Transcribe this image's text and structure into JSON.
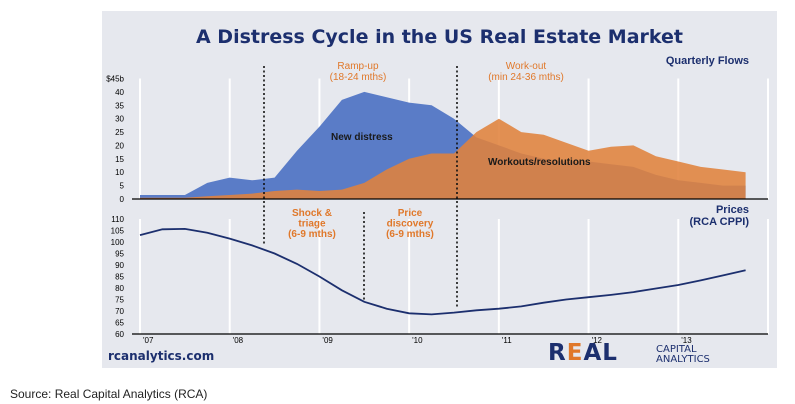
{
  "title": "A Distress Cycle in the US Real Estate Market",
  "website": "rcanalytics.com",
  "logo": {
    "main_pre": "R",
    "main_e": "E",
    "main_post": "AL",
    "line1": "CAPITAL",
    "line2": "ANALYTICS"
  },
  "source": "Source: Real Capital Analytics (RCA)",
  "colors": {
    "blue": "#5a7cc7",
    "orange": "#e0823c",
    "navy": "#1c2f6e",
    "phase": "#e0782a",
    "panel": "#e6e8ee"
  },
  "chart_data": [
    {
      "type": "area",
      "title": "Quarterly Flows",
      "y_unit_label": "$45b",
      "yticks": [
        40,
        35,
        30,
        25,
        20,
        15,
        10,
        5,
        0
      ],
      "ylim": [
        0,
        45
      ],
      "xlim": [
        2007,
        2014
      ],
      "x": [
        2007.0,
        2007.25,
        2007.5,
        2007.75,
        2008.0,
        2008.25,
        2008.5,
        2008.75,
        2009.0,
        2009.25,
        2009.5,
        2009.75,
        2010.0,
        2010.25,
        2010.5,
        2010.75,
        2011.0,
        2011.25,
        2011.5,
        2011.75,
        2012.0,
        2012.25,
        2012.5,
        2012.75,
        2013.0,
        2013.25,
        2013.5,
        2013.75
      ],
      "series": [
        {
          "name": "New distress",
          "color": "blue",
          "values": [
            1.5,
            1.5,
            1.5,
            6,
            8,
            7,
            8,
            18,
            27,
            37,
            40,
            38,
            36,
            35,
            30,
            23,
            20,
            17,
            15,
            14,
            14,
            13,
            12,
            9,
            7,
            6,
            5,
            5
          ]
        },
        {
          "name": "Workouts/resolutions",
          "color": "orange",
          "values": [
            0.5,
            0.5,
            0.5,
            1,
            1.5,
            2,
            3,
            3.5,
            3,
            3.5,
            6,
            11,
            15,
            17,
            17,
            25,
            30,
            25,
            24,
            21,
            18,
            19.5,
            20,
            16,
            14,
            12,
            11,
            10
          ]
        }
      ],
      "phases": [
        {
          "label_lines": [
            "Ramp-up",
            "(18-24 mths)"
          ]
        },
        {
          "label_lines": [
            "Work-out",
            "(min 24-36 mths)"
          ]
        }
      ]
    },
    {
      "type": "line",
      "title": "Prices",
      "subtitle": "(RCA CPPI)",
      "yticks": [
        110,
        105,
        100,
        95,
        90,
        85,
        80,
        75,
        70,
        65,
        60
      ],
      "ylim": [
        60,
        110
      ],
      "xlim": [
        2007,
        2014
      ],
      "xticks": [
        "'07",
        "'08",
        "'09",
        "'10",
        "'11",
        "'12",
        "'13"
      ],
      "x": [
        2007.0,
        2007.25,
        2007.5,
        2007.75,
        2008.0,
        2008.25,
        2008.5,
        2008.75,
        2009.0,
        2009.25,
        2009.5,
        2009.75,
        2010.0,
        2010.25,
        2010.5,
        2010.75,
        2011.0,
        2011.25,
        2011.5,
        2011.75,
        2012.0,
        2012.25,
        2012.5,
        2012.75,
        2013.0,
        2013.25,
        2013.5,
        2013.75
      ],
      "series": [
        {
          "name": "",
          "color": "navy",
          "values": [
            103,
            105.5,
            105.7,
            104,
            101.5,
            98.5,
            95,
            90.5,
            85,
            79,
            74,
            71,
            69,
            68.5,
            69.3,
            70.3,
            71,
            72,
            73.6,
            75,
            76,
            77,
            78.2,
            79.8,
            81.3,
            83.3,
            85.5,
            87.7
          ]
        }
      ],
      "phases": [
        {
          "label_lines": [
            "Shock &",
            "triage",
            "(6-9 mths)"
          ]
        },
        {
          "label_lines": [
            "Price",
            "discovery",
            "(6-9 mths)"
          ]
        }
      ]
    }
  ]
}
